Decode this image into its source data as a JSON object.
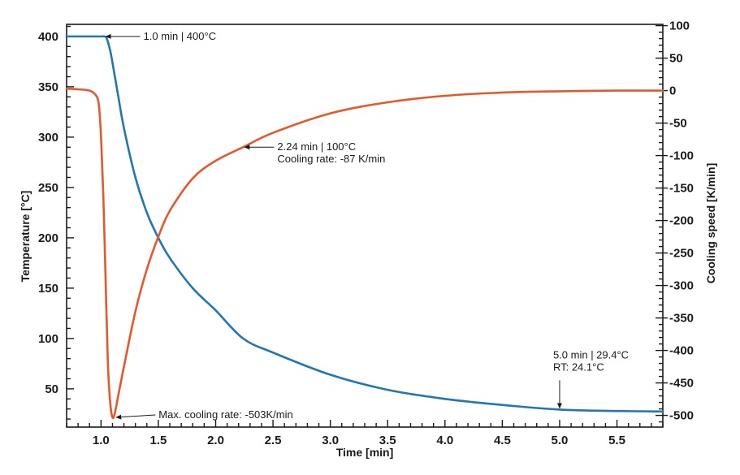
{
  "chart_data": {
    "type": "line",
    "xlabel": "Time [min]",
    "ylabel_left": "Temperature [°C]",
    "ylabel_right": "Cooling speed [K/min]",
    "xlim": [
      0.7,
      5.9
    ],
    "ylim_left": [
      12,
      412
    ],
    "ylim_right": [
      -518,
      102
    ],
    "x_ticks": [
      1.0,
      1.5,
      2.0,
      2.5,
      3.0,
      3.5,
      4.0,
      4.5,
      5.0,
      5.5
    ],
    "x_tick_labels": [
      "1.0",
      "1.5",
      "2.0",
      "2.5",
      "3.0",
      "3.5",
      "4.0",
      "4.5",
      "5.0",
      "5.5"
    ],
    "y_left_ticks": [
      50,
      100,
      150,
      200,
      250,
      300,
      350,
      400
    ],
    "y_left_tick_labels": [
      "50",
      "100",
      "150",
      "200",
      "250",
      "300",
      "350",
      "400"
    ],
    "y_right_ticks": [
      100,
      50,
      0,
      -50,
      -100,
      -150,
      -200,
      -250,
      -300,
      -350,
      -400,
      -450,
      -500
    ],
    "y_right_tick_labels": [
      "100",
      "50",
      "0",
      "-50",
      "-100",
      "-150",
      "-200",
      "-250",
      "-300",
      "-350",
      "-400",
      "-450",
      "-500"
    ],
    "series": [
      {
        "name": "Temperature",
        "axis": "left",
        "color": "#1f77b4",
        "x": [
          0.7,
          0.8,
          0.9,
          1.0,
          1.03,
          1.05,
          1.08,
          1.1,
          1.15,
          1.2,
          1.3,
          1.4,
          1.5,
          1.6,
          1.8,
          2.0,
          2.24,
          2.5,
          3.0,
          3.5,
          4.0,
          4.5,
          5.0,
          5.5,
          5.9
        ],
        "y": [
          400,
          400,
          400,
          400,
          400,
          398,
          386,
          374,
          341,
          309,
          260,
          225,
          200,
          180,
          150,
          128,
          100,
          86,
          64,
          49,
          40,
          34,
          29.4,
          28,
          27.5
        ]
      },
      {
        "name": "Cooling speed",
        "axis": "right",
        "color": "#e8572a",
        "x": [
          0.7,
          0.8,
          0.9,
          0.95,
          0.98,
          1.0,
          1.02,
          1.04,
          1.06,
          1.08,
          1.1,
          1.12,
          1.15,
          1.2,
          1.3,
          1.4,
          1.5,
          1.6,
          1.8,
          2.0,
          2.24,
          2.5,
          3.0,
          3.5,
          4.0,
          4.5,
          5.0,
          5.5,
          5.9
        ],
        "y": [
          3,
          2,
          0,
          -6,
          -20,
          -70,
          -160,
          -290,
          -420,
          -480,
          -503,
          -497,
          -470,
          -425,
          -340,
          -275,
          -225,
          -185,
          -135,
          -108,
          -87,
          -65,
          -35,
          -18,
          -8,
          -3,
          -1,
          0,
          0
        ]
      }
    ],
    "annotations": [
      {
        "text": "1.0 min | 400°C",
        "x": 1.03,
        "y": 400,
        "axis": "left"
      },
      {
        "text": "2.24 min | 100°C",
        "text2": "Cooling rate: -87 K/min",
        "x": 2.24,
        "y": -87,
        "axis": "right"
      },
      {
        "text": "5.0 min | 29.4°C",
        "text2": "RT: 24.1°C",
        "x": 5.0,
        "y": 29.4,
        "axis": "left"
      },
      {
        "text": "Max. cooling rate: -503K/min",
        "x": 1.12,
        "y": -503,
        "axis": "right"
      }
    ]
  }
}
